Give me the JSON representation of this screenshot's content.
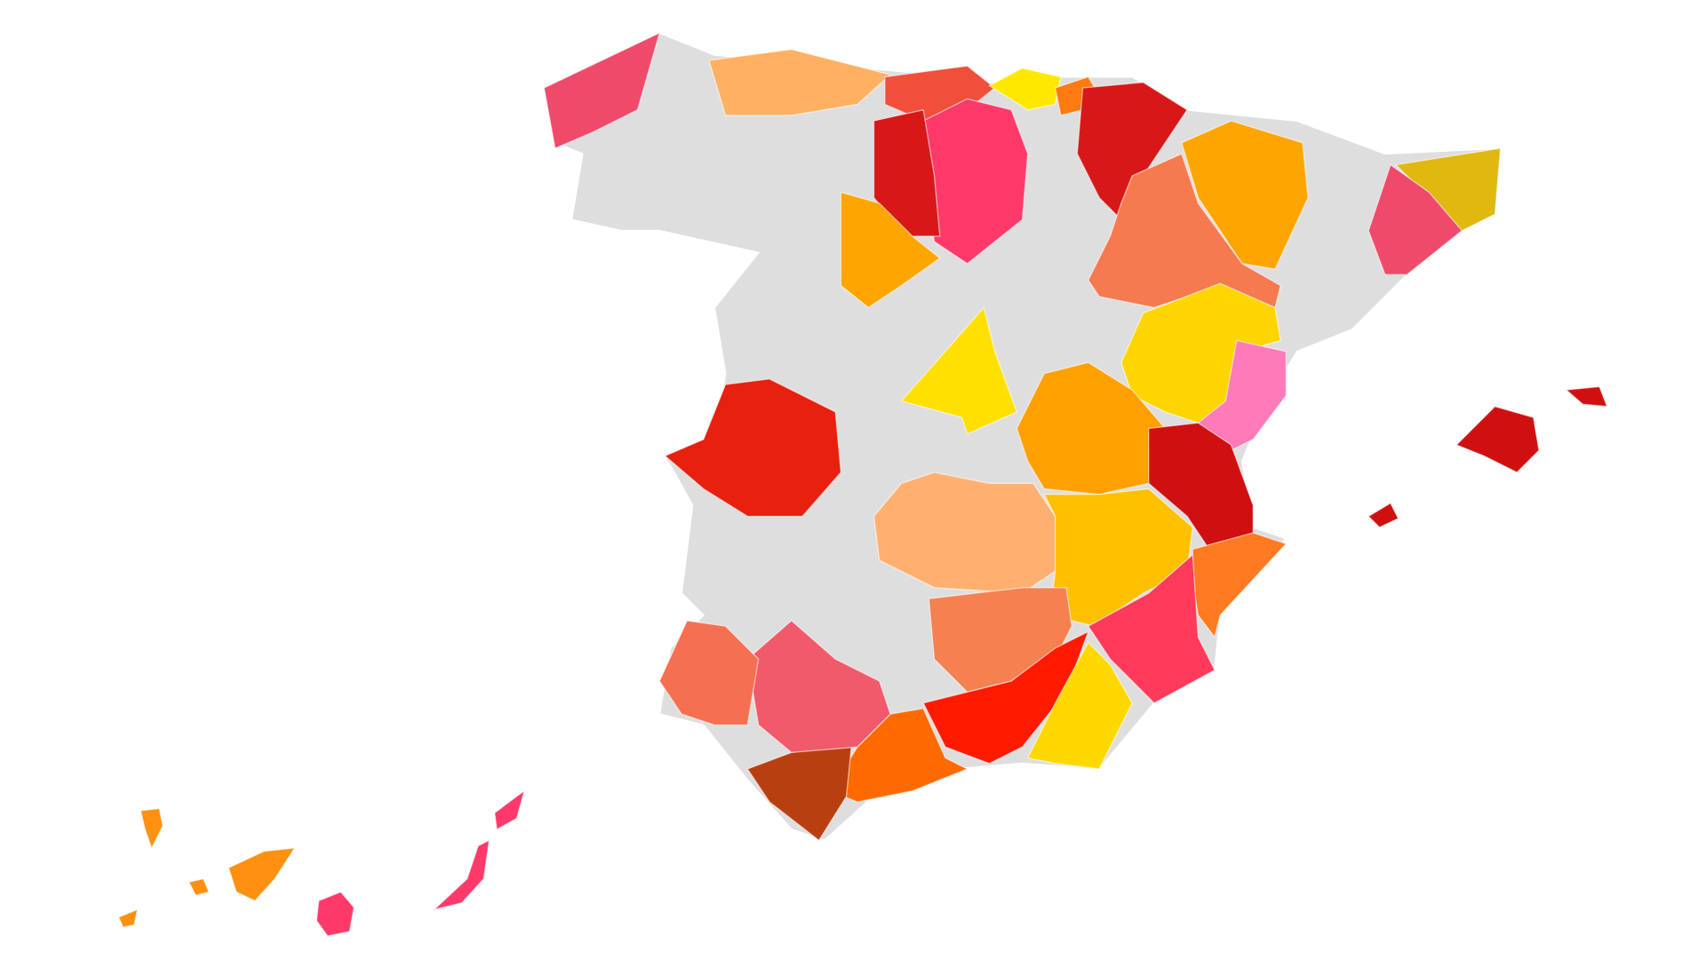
{
  "regions": [
    {
      "color": "#f04a6b"
    },
    {
      "color": "#ffb060"
    },
    {
      "color": "#f0503a"
    },
    {
      "color": "#ffe800"
    },
    {
      "color": "#ff7a10"
    },
    {
      "color": "#d81818"
    },
    {
      "color": "#ff3a6a"
    },
    {
      "color": "#d81818"
    },
    {
      "color": "#ffa500"
    },
    {
      "color": "#ffa500"
    },
    {
      "color": "#f57a50"
    },
    {
      "color": "#ffd500"
    },
    {
      "color": "#ff7ab8"
    },
    {
      "color": "#e0b810"
    },
    {
      "color": "#f04a6b"
    },
    {
      "color": "#ffe000"
    },
    {
      "color": "#e82010"
    },
    {
      "color": "#ffa000"
    },
    {
      "color": "#d01010"
    },
    {
      "color": "#ffb070"
    },
    {
      "color": "#ffc000"
    },
    {
      "color": "#ff7a20"
    },
    {
      "color": "#ff3a5a"
    },
    {
      "color": "#f58050"
    },
    {
      "color": "#ff1a00"
    },
    {
      "color": "#ffd800"
    },
    {
      "color": "#ff6a00"
    },
    {
      "color": "#b84010"
    },
    {
      "color": "#f05a6a"
    },
    {
      "color": "#f57050"
    },
    {
      "color": "#d01010"
    },
    {
      "color": "#ff9010"
    },
    {
      "color": "#ff3a6a"
    },
    {
      "color": "#ff3a6a"
    }
  ]
}
